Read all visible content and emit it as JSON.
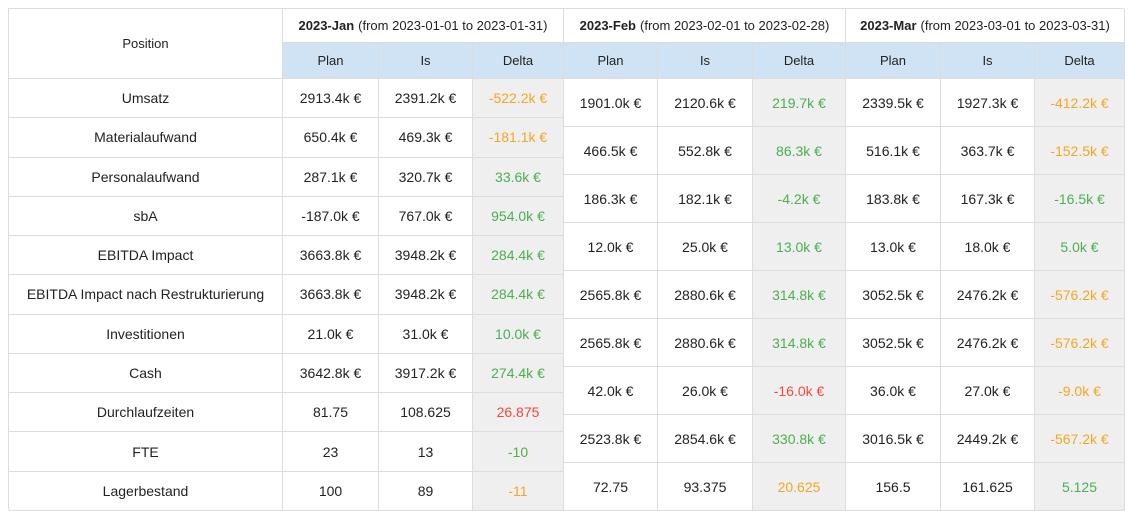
{
  "position_header": "Position",
  "positions": [
    "Umsatz",
    "Materialaufwand",
    "Personalaufwand",
    "sbA",
    "EBITDA Impact",
    "EBITDA Impact nach Restrukturierung",
    "Investitionen",
    "Cash",
    "Durchlaufzeiten",
    "FTE",
    "Lagerbestand"
  ],
  "periods": [
    {
      "name": "2023-Jan",
      "range": "(from 2023-01-01 to 2023-01-31)",
      "columns": [
        "Plan",
        "Is",
        "Delta"
      ],
      "rows": [
        {
          "plan": "2913.4k €",
          "is": "2391.2k €",
          "delta": "-522.2k €",
          "delta_color": "orange"
        },
        {
          "plan": "650.4k €",
          "is": "469.3k €",
          "delta": "-181.1k €",
          "delta_color": "orange"
        },
        {
          "plan": "287.1k €",
          "is": "320.7k €",
          "delta": "33.6k €",
          "delta_color": "green"
        },
        {
          "plan": "-187.0k €",
          "is": "767.0k €",
          "delta": "954.0k €",
          "delta_color": "green"
        },
        {
          "plan": "3663.8k €",
          "is": "3948.2k €",
          "delta": "284.4k €",
          "delta_color": "green"
        },
        {
          "plan": "3663.8k €",
          "is": "3948.2k €",
          "delta": "284.4k €",
          "delta_color": "green"
        },
        {
          "plan": "21.0k €",
          "is": "31.0k €",
          "delta": "10.0k €",
          "delta_color": "green"
        },
        {
          "plan": "3642.8k €",
          "is": "3917.2k €",
          "delta": "274.4k €",
          "delta_color": "green"
        },
        {
          "plan": "81.75",
          "is": "108.625",
          "delta": "26.875",
          "delta_color": "red"
        },
        {
          "plan": "23",
          "is": "13",
          "delta": "-10",
          "delta_color": "green"
        },
        {
          "plan": "100",
          "is": "89",
          "delta": "-11",
          "delta_color": "orange"
        }
      ]
    },
    {
      "name": "2023-Feb",
      "range": "(from 2023-02-01 to 2023-02-28)",
      "columns": [
        "Plan",
        "Is",
        "Delta"
      ],
      "rows": [
        {
          "plan": "1901.0k €",
          "is": "2120.6k €",
          "delta": "219.7k €",
          "delta_color": "green"
        },
        {
          "plan": "466.5k €",
          "is": "552.8k €",
          "delta": "86.3k €",
          "delta_color": "green"
        },
        {
          "plan": "186.3k €",
          "is": "182.1k €",
          "delta": "-4.2k €",
          "delta_color": "green"
        },
        {
          "plan": "12.0k €",
          "is": "25.0k €",
          "delta": "13.0k €",
          "delta_color": "green"
        },
        {
          "plan": "2565.8k €",
          "is": "2880.6k €",
          "delta": "314.8k €",
          "delta_color": "green"
        },
        {
          "plan": "2565.8k €",
          "is": "2880.6k €",
          "delta": "314.8k €",
          "delta_color": "green"
        },
        {
          "plan": "42.0k €",
          "is": "26.0k €",
          "delta": "-16.0k €",
          "delta_color": "red"
        },
        {
          "plan": "2523.8k €",
          "is": "2854.6k €",
          "delta": "330.8k €",
          "delta_color": "green"
        },
        {
          "plan": "72.75",
          "is": "93.375",
          "delta": "20.625",
          "delta_color": "orange"
        }
      ]
    },
    {
      "name": "2023-Mar",
      "range": "(from 2023-03-01 to 2023-03-31)",
      "columns": [
        "Plan",
        "Is",
        "Delta"
      ],
      "rows": [
        {
          "plan": "2339.5k €",
          "is": "1927.3k €",
          "delta": "-412.2k €",
          "delta_color": "orange"
        },
        {
          "plan": "516.1k €",
          "is": "363.7k €",
          "delta": "-152.5k €",
          "delta_color": "orange"
        },
        {
          "plan": "183.8k €",
          "is": "167.3k €",
          "delta": "-16.5k €",
          "delta_color": "green"
        },
        {
          "plan": "13.0k €",
          "is": "18.0k €",
          "delta": "5.0k €",
          "delta_color": "green"
        },
        {
          "plan": "3052.5k €",
          "is": "2476.2k €",
          "delta": "-576.2k €",
          "delta_color": "orange"
        },
        {
          "plan": "3052.5k €",
          "is": "2476.2k €",
          "delta": "-576.2k €",
          "delta_color": "orange"
        },
        {
          "plan": "36.0k €",
          "is": "27.0k €",
          "delta": "-9.0k €",
          "delta_color": "orange"
        },
        {
          "plan": "3016.5k €",
          "is": "2449.2k €",
          "delta": "-567.2k €",
          "delta_color": "orange"
        },
        {
          "plan": "156.5",
          "is": "161.625",
          "delta": "5.125",
          "delta_color": "green"
        }
      ]
    }
  ]
}
